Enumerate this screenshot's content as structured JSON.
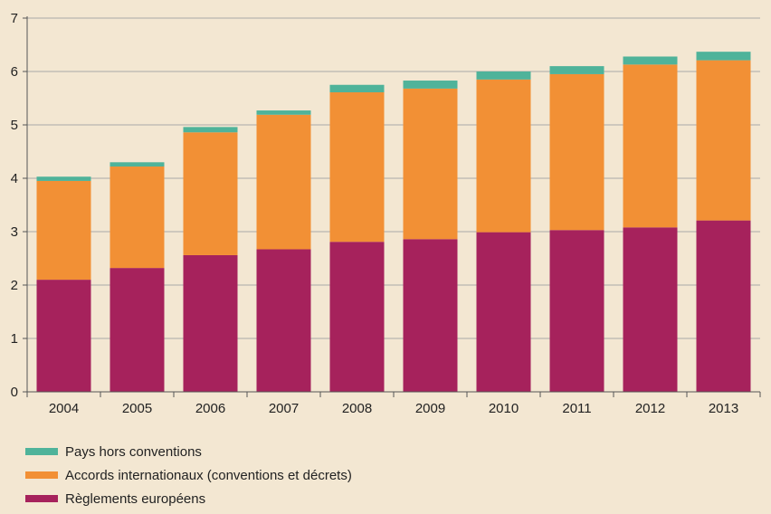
{
  "chart_data": {
    "type": "bar",
    "stacked": true,
    "categories": [
      "2004",
      "2005",
      "2006",
      "2007",
      "2008",
      "2009",
      "2010",
      "2011",
      "2012",
      "2013"
    ],
    "series": [
      {
        "name": "Règlements européens",
        "color": "#a6225c",
        "values": [
          2.1,
          2.32,
          2.56,
          2.67,
          2.81,
          2.86,
          2.99,
          3.03,
          3.08,
          3.21
        ]
      },
      {
        "name": "Accords internationaux (conventions et décrets)",
        "color": "#f29035",
        "values": [
          1.85,
          1.9,
          2.3,
          2.52,
          2.8,
          2.82,
          2.86,
          2.92,
          3.05,
          3.0
        ]
      },
      {
        "name": "Pays hors conventions",
        "color": "#4fb39a",
        "values": [
          0.08,
          0.08,
          0.1,
          0.08,
          0.14,
          0.15,
          0.15,
          0.15,
          0.15,
          0.16
        ]
      }
    ],
    "yticks": [
      "0",
      "1",
      "2",
      "3",
      "4",
      "5",
      "6",
      "7"
    ],
    "ylim": [
      0,
      7
    ],
    "xlabel": "",
    "ylabel": "",
    "title": "",
    "grid": true,
    "legend_position": "bottom-left",
    "legend_order": [
      2,
      1,
      0
    ]
  }
}
